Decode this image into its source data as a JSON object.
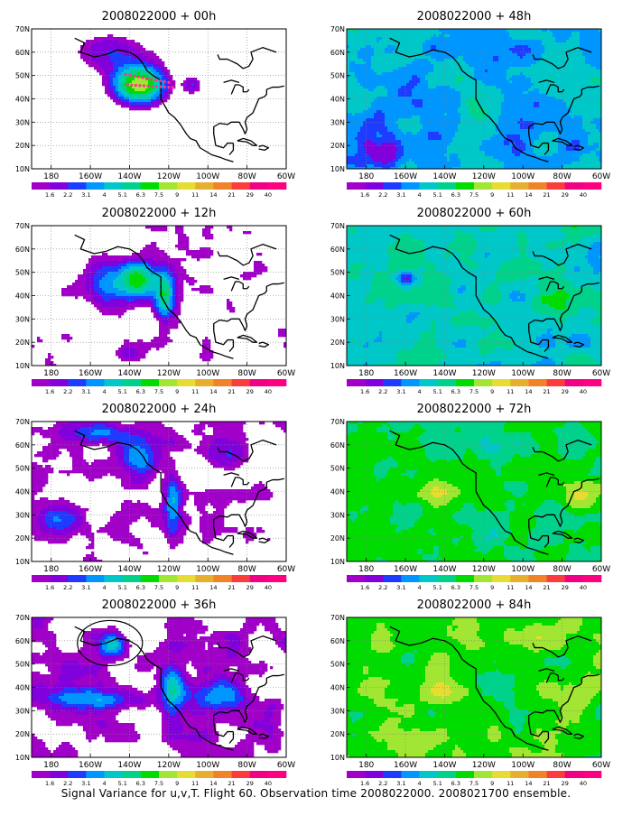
{
  "figure": {
    "caption": "Signal Variance for u,v,T. Flight 60. Observation time 2008022000. 2008021700 ensemble."
  },
  "panels": [
    {
      "title": "2008022000 + 00h",
      "lead_hours": 0
    },
    {
      "title": "2008022000 + 12h",
      "lead_hours": 12
    },
    {
      "title": "2008022000 + 24h",
      "lead_hours": 24
    },
    {
      "title": "2008022000 + 36h",
      "lead_hours": 36
    },
    {
      "title": "2008022000 + 48h",
      "lead_hours": 48
    },
    {
      "title": "2008022000 + 60h",
      "lead_hours": 60
    },
    {
      "title": "2008022000 + 72h",
      "lead_hours": 72
    },
    {
      "title": "2008022000 + 84h",
      "lead_hours": 84
    }
  ],
  "axes": {
    "lon_labels": [
      "180",
      "160W",
      "140W",
      "120W",
      "100W",
      "80W",
      "60W"
    ],
    "lat_labels": [
      "10N",
      "20N",
      "30N",
      "40N",
      "50N",
      "60N",
      "70N"
    ],
    "lon_range": [
      -190,
      -60
    ],
    "lat_range": [
      10,
      70
    ]
  },
  "colorbar": {
    "labels": [
      "1.6",
      "2.2",
      "3.1",
      "4",
      "5.1",
      "6.3",
      "7.5",
      "9",
      "11",
      "14",
      "21",
      "29",
      "40"
    ],
    "colors": [
      "#a000c8",
      "#8200dc",
      "#1e3cff",
      "#0096ff",
      "#00c8c8",
      "#00d28c",
      "#00dc00",
      "#a0e632",
      "#e6dc32",
      "#e6af2d",
      "#f08228",
      "#fa3c3c",
      "#f00082",
      "#ff0080"
    ]
  },
  "colors": {
    "land_outline": "#000000",
    "grid": "#808080",
    "flight_track": "#ff3399",
    "storm_circle": "#000000"
  }
}
